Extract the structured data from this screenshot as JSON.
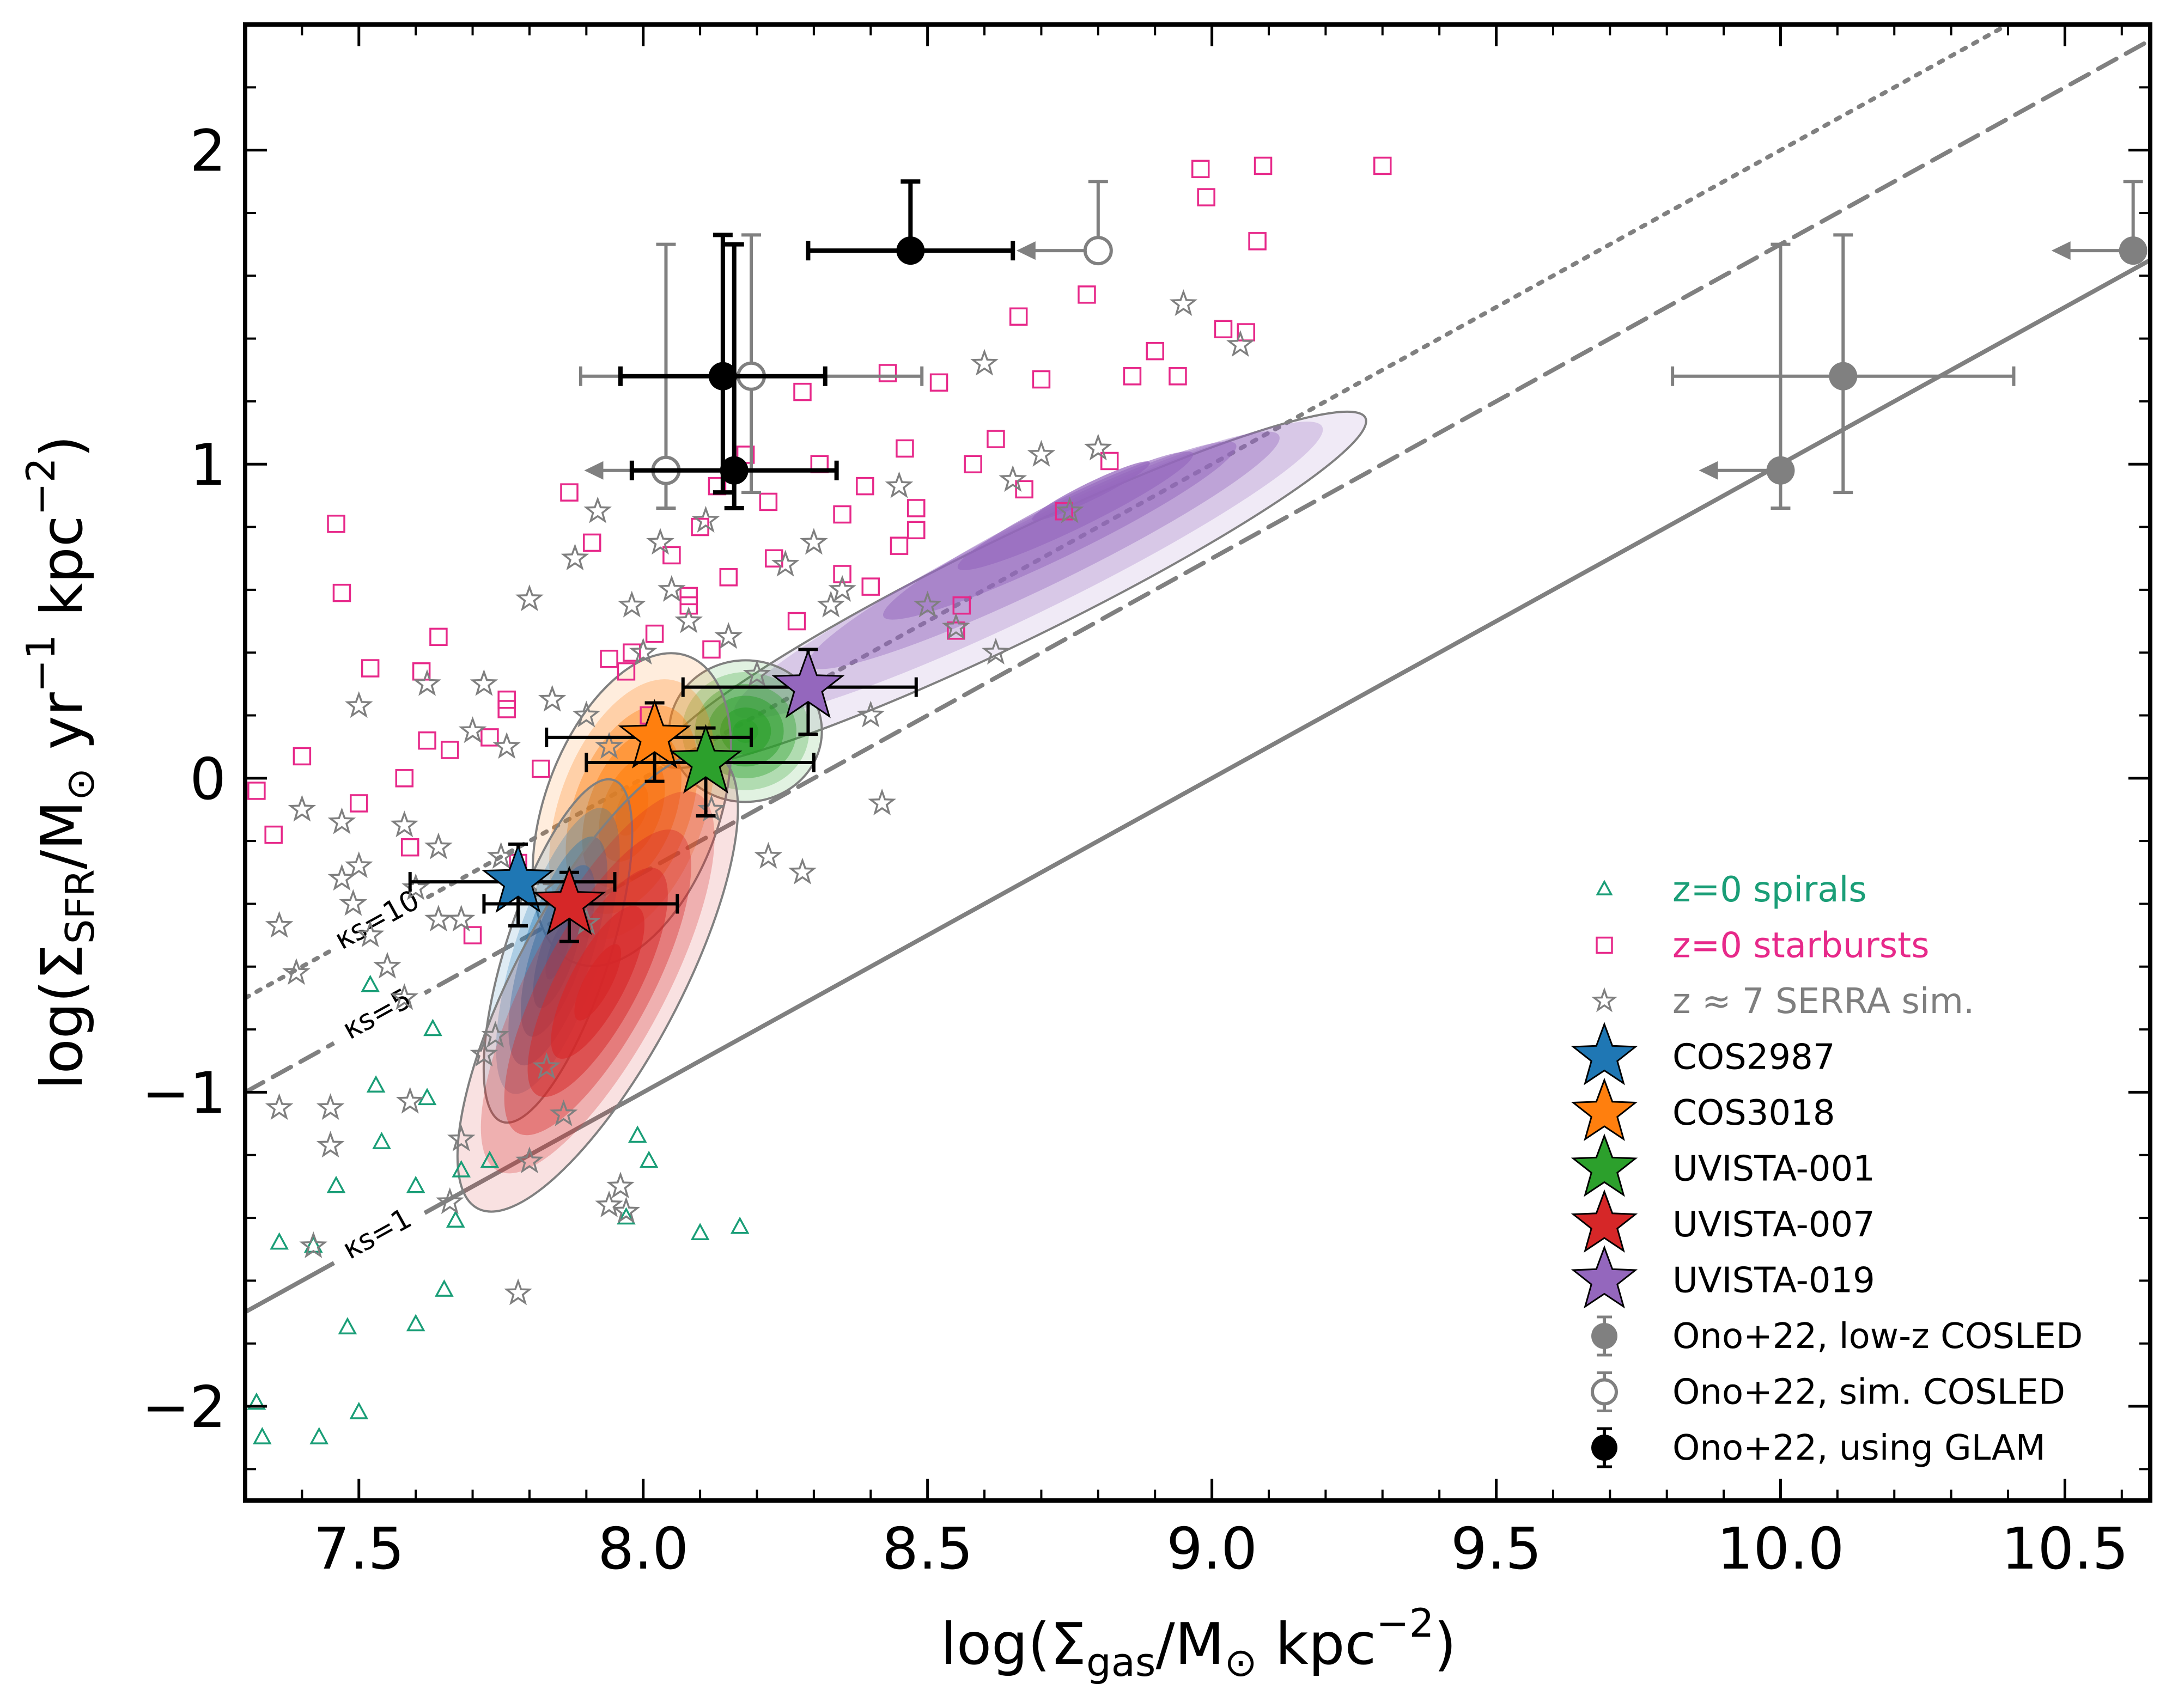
{
  "chart_data": {
    "type": "scatter",
    "title": "",
    "xlabel_parts": [
      "log(Σ",
      "gas",
      "/M",
      "⊙",
      " kpc",
      "−2",
      ")"
    ],
    "ylabel_parts": [
      "log(Σ",
      "SFR",
      "/M",
      "⊙",
      " yr",
      "−1",
      " kpc",
      "−2",
      ")"
    ],
    "xlim": [
      7.3,
      10.65
    ],
    "ylim": [
      -2.3,
      2.4
    ],
    "xticks": [
      7.5,
      8.0,
      8.5,
      9.0,
      9.5,
      10.0,
      10.5
    ],
    "xtick_labels": [
      "7.5",
      "8.0",
      "8.5",
      "9.0",
      "9.5",
      "10.0",
      "10.5"
    ],
    "yticks": [
      -2,
      -1,
      0,
      1,
      2
    ],
    "ytick_labels": [
      "−2",
      "−1",
      "0",
      "1",
      "2"
    ],
    "grid": false,
    "legend_position": "bottom-right",
    "colors": {
      "spirals": "#1a9e77",
      "starbursts": "#e7298a",
      "serra": "#7f7f7f",
      "COS2987": "#1f77b4",
      "COS3018": "#ff7f0e",
      "UVISTA-001": "#2ca02c",
      "UVISTA-007": "#d62728",
      "UVISTA-019": "#9467bd",
      "ono_lowz": "#808080",
      "ono_glam": "#000000"
    },
    "ks_lines": [
      {
        "name": "ks=1",
        "label": "κs=1",
        "intercept": -9.0,
        "slope": 1,
        "style": "solid"
      },
      {
        "name": "ks=5",
        "label": "κs=5",
        "intercept": -8.3,
        "slope": 1,
        "style": "dashed"
      },
      {
        "name": "ks=10",
        "label": "κs=10",
        "intercept": -8.0,
        "slope": 1,
        "style": "dotted"
      }
    ],
    "density_regions": [
      {
        "name": "UVISTA-019",
        "color": "#9467bd",
        "center": [
          8.65,
          0.6
        ],
        "extent": [
          0.55,
          0.1
        ],
        "angle_deg": 26
      },
      {
        "name": "UVISTA-001",
        "color": "#2ca02c",
        "center": [
          8.18,
          0.15
        ],
        "extent": [
          0.18,
          0.18
        ],
        "angle_deg": 0
      },
      {
        "name": "COS3018",
        "color": "#ff7f0e",
        "center": [
          7.98,
          -0.1
        ],
        "extent": [
          0.2,
          0.38
        ],
        "angle_deg": 18
      },
      {
        "name": "COS2987",
        "color": "#1f77b4",
        "center": [
          7.85,
          -0.55
        ],
        "extent": [
          0.12,
          0.42
        ],
        "angle_deg": 20
      },
      {
        "name": "UVISTA-007",
        "color": "#d62728",
        "center": [
          7.92,
          -0.65
        ],
        "extent": [
          0.17,
          0.65
        ],
        "angle_deg": 32
      }
    ],
    "series": [
      {
        "name": "z=0 spirals",
        "marker": "triangle",
        "x": [
          7.33,
          7.32,
          7.36,
          7.43,
          7.42,
          7.46,
          7.48,
          7.5,
          7.53,
          7.54,
          7.6,
          7.6,
          7.62,
          7.65,
          7.67,
          7.68,
          7.73,
          7.97,
          7.99,
          8.01,
          8.1,
          8.17,
          7.52,
          7.63
        ],
        "y": [
          -2.1,
          -1.99,
          -1.48,
          -2.1,
          -1.49,
          -1.3,
          -1.75,
          -2.02,
          -0.98,
          -1.16,
          -1.3,
          -1.74,
          -1.02,
          -1.63,
          -1.41,
          -1.25,
          -1.22,
          -1.4,
          -1.14,
          -1.22,
          -1.45,
          -1.43,
          -0.66,
          -0.8
        ]
      },
      {
        "name": "z=0 starbursts",
        "marker": "square",
        "x": [
          7.32,
          7.35,
          7.4,
          7.46,
          7.47,
          7.5,
          7.52,
          7.58,
          7.59,
          7.61,
          7.62,
          7.64,
          7.66,
          7.7,
          7.73,
          7.76,
          7.78,
          7.82,
          7.87,
          7.91,
          7.94,
          7.98,
          8.01,
          8.05,
          8.08,
          8.1,
          8.13,
          8.18,
          8.22,
          8.28,
          8.31,
          8.35,
          8.39,
          8.43,
          8.46,
          8.48,
          8.52,
          8.55,
          8.58,
          8.62,
          8.66,
          8.7,
          8.74,
          8.78,
          8.82,
          8.86,
          8.9,
          8.94,
          8.98,
          9.02,
          9.06,
          9.09,
          9.3,
          9.08,
          8.99,
          8.48,
          8.4,
          8.27,
          8.12,
          7.97,
          7.76,
          8.56,
          8.67,
          8.45,
          8.35,
          8.23,
          8.15,
          8.08,
          8.02
        ],
        "y": [
          -0.04,
          -0.18,
          0.07,
          0.81,
          0.59,
          -0.08,
          0.35,
          0.0,
          -0.22,
          0.34,
          0.12,
          0.45,
          0.09,
          -0.5,
          0.13,
          0.22,
          -0.27,
          0.03,
          0.91,
          0.75,
          0.38,
          0.4,
          0.2,
          0.71,
          0.58,
          0.8,
          0.93,
          1.03,
          0.88,
          1.23,
          1.0,
          0.65,
          0.93,
          1.29,
          1.05,
          0.86,
          1.26,
          0.47,
          1.0,
          1.08,
          1.47,
          1.27,
          0.85,
          1.54,
          1.01,
          1.28,
          1.36,
          1.28,
          1.94,
          1.43,
          1.42,
          1.95,
          1.95,
          1.71,
          1.85,
          0.79,
          0.61,
          0.5,
          0.41,
          0.34,
          0.25,
          0.55,
          0.92,
          0.74,
          0.84,
          0.7,
          0.64,
          0.55,
          0.46
        ]
      },
      {
        "name": "z≈7 SERRA sim.",
        "marker": "star",
        "x": [
          7.36,
          7.36,
          7.4,
          7.42,
          7.45,
          7.47,
          7.49,
          7.5,
          7.55,
          7.58,
          7.59,
          7.62,
          7.64,
          7.66,
          7.68,
          7.7,
          7.72,
          7.74,
          7.76,
          7.78,
          7.8,
          7.82,
          7.84,
          7.86,
          7.88,
          7.9,
          7.92,
          7.94,
          7.96,
          7.98,
          8.0,
          8.03,
          8.05,
          8.08,
          8.11,
          8.15,
          8.2,
          8.25,
          8.3,
          8.35,
          8.4,
          8.45,
          8.5,
          8.55,
          8.6,
          8.65,
          8.7,
          8.8,
          8.95,
          9.05,
          7.45,
          7.52,
          7.6,
          7.68,
          7.75,
          7.83,
          7.9,
          7.94,
          8.22,
          8.33,
          8.42,
          7.8,
          7.97,
          7.72,
          7.64,
          7.58,
          7.5,
          7.47,
          7.39,
          8.28,
          8.12,
          8.62,
          8.75
        ],
        "y": [
          -1.05,
          -0.47,
          -0.1,
          -1.49,
          -1.17,
          -0.14,
          -0.4,
          0.23,
          -0.6,
          -0.15,
          -1.03,
          0.3,
          -0.22,
          -1.35,
          -0.45,
          0.15,
          0.3,
          -0.82,
          0.1,
          -1.64,
          0.57,
          -0.35,
          0.25,
          -1.07,
          0.7,
          0.2,
          0.85,
          0.1,
          -1.3,
          0.55,
          0.4,
          0.75,
          0.6,
          0.5,
          0.82,
          0.45,
          0.33,
          0.68,
          0.75,
          0.6,
          0.2,
          0.93,
          0.55,
          0.48,
          1.32,
          0.95,
          1.03,
          1.05,
          1.51,
          1.38,
          -1.05,
          -0.5,
          -0.35,
          -1.15,
          -0.25,
          -0.92,
          -0.46,
          -1.36,
          -0.25,
          0.55,
          -0.08,
          -1.22,
          -1.38,
          -0.88,
          -0.45,
          -0.7,
          -0.28,
          -0.32,
          -0.62,
          -0.3,
          -0.1,
          0.4,
          0.85
        ]
      },
      {
        "name": "COS2987",
        "marker": "big-star",
        "x": [
          7.78
        ],
        "y": [
          -0.33
        ],
        "xerr": [
          [
            0.19
          ],
          [
            0.17
          ]
        ],
        "yerr": [
          [
            0.14
          ],
          [
            0.12
          ]
        ]
      },
      {
        "name": "COS3018",
        "marker": "big-star",
        "x": [
          8.02
        ],
        "y": [
          0.13
        ],
        "xerr": [
          [
            0.19
          ],
          [
            0.17
          ]
        ],
        "yerr": [
          [
            0.14
          ],
          [
            0.11
          ]
        ]
      },
      {
        "name": "UVISTA-001",
        "marker": "big-star",
        "x": [
          8.11
        ],
        "y": [
          0.05
        ],
        "xerr": [
          [
            0.21
          ],
          [
            0.19
          ]
        ],
        "yerr": [
          [
            0.17
          ],
          [
            0.11
          ]
        ]
      },
      {
        "name": "UVISTA-007",
        "marker": "big-star",
        "x": [
          7.87
        ],
        "y": [
          -0.4
        ],
        "xerr": [
          [
            0.15
          ],
          [
            0.19
          ]
        ],
        "yerr": [
          [
            0.12
          ],
          [
            0.1
          ]
        ]
      },
      {
        "name": "UVISTA-019",
        "marker": "big-star",
        "x": [
          8.29
        ],
        "y": [
          0.29
        ],
        "xerr": [
          [
            0.22
          ],
          [
            0.19
          ]
        ],
        "yerr": [
          [
            0.15
          ],
          [
            0.12
          ]
        ]
      },
      {
        "name": "Ono+22, low-z COSLED",
        "marker": "filled-circle-gray",
        "x": [
          10.11,
          10.0,
          10.62
        ],
        "y": [
          1.28,
          0.98,
          1.68
        ],
        "xerr": [
          [
            0.3,
            0,
            0
          ],
          [
            0.3,
            0,
            0
          ]
        ],
        "yerr": [
          [
            0.37,
            0.12,
            0
          ],
          [
            0.45,
            0.72,
            0.22
          ]
        ],
        "xupper": [
          false,
          true,
          true
        ]
      },
      {
        "name": "Ono+22, sim. COSLED",
        "marker": "open-circle-gray",
        "x": [
          8.19,
          8.04,
          8.8
        ],
        "y": [
          1.28,
          0.98,
          1.68
        ],
        "xerr": [
          [
            0.3,
            0,
            0
          ],
          [
            0.3,
            0,
            0
          ]
        ],
        "yerr": [
          [
            0.37,
            0.12,
            0
          ],
          [
            0.45,
            0.72,
            0.22
          ]
        ],
        "xupper": [
          false,
          true,
          true
        ]
      },
      {
        "name": "Ono+22, using GLAM",
        "marker": "filled-circle-black",
        "x": [
          8.14,
          8.16,
          8.47
        ],
        "y": [
          1.28,
          0.98,
          1.68
        ],
        "xerr": [
          [
            0.18,
            0.18,
            0.18
          ],
          [
            0.18,
            0.18,
            0.18
          ]
        ],
        "yerr": [
          [
            0.37,
            0.12,
            0
          ],
          [
            0.45,
            0.72,
            0.22
          ]
        ],
        "xupper": [
          false,
          false,
          false
        ]
      }
    ]
  },
  "legend": {
    "items": [
      {
        "label": "z=0 spirals",
        "marker": "triangle",
        "color": "#1a9e77",
        "text_color": "#1a9e77"
      },
      {
        "label": "z=0 starbursts",
        "marker": "square",
        "color": "#e7298a",
        "text_color": "#e7298a"
      },
      {
        "label": "z ≈ 7 SERRA sim.",
        "marker": "star",
        "color": "#7f7f7f",
        "text_color": "#7f7f7f"
      },
      {
        "label": "COS2987",
        "marker": "big-star",
        "color": "#1f77b4",
        "text_color": "#000000"
      },
      {
        "label": "COS3018",
        "marker": "big-star",
        "color": "#ff7f0e",
        "text_color": "#000000"
      },
      {
        "label": "UVISTA-001",
        "marker": "big-star",
        "color": "#2ca02c",
        "text_color": "#000000"
      },
      {
        "label": "UVISTA-007",
        "marker": "big-star",
        "color": "#d62728",
        "text_color": "#000000"
      },
      {
        "label": "UVISTA-019",
        "marker": "big-star",
        "color": "#9467bd",
        "text_color": "#000000"
      },
      {
        "label": "Ono+22, low-z COSLED",
        "marker": "filled-circle-gray",
        "color": "#808080",
        "text_color": "#000000"
      },
      {
        "label": "Ono+22, sim. COSLED",
        "marker": "open-circle-gray",
        "color": "#808080",
        "text_color": "#000000"
      },
      {
        "label": "Ono+22, using GLAM",
        "marker": "filled-circle-black",
        "color": "#000000",
        "text_color": "#000000"
      }
    ]
  }
}
